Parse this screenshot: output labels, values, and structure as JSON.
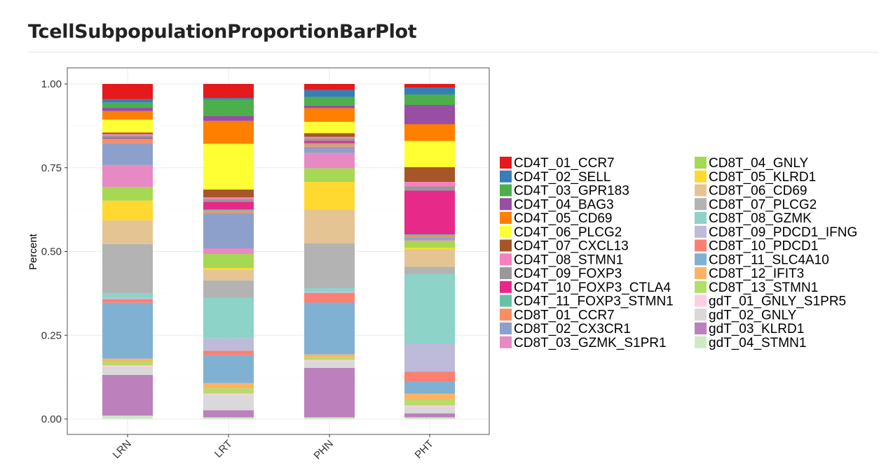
{
  "page": {
    "title": "TcellSubpopulationProportionBarPlot"
  },
  "chart_data": {
    "type": "bar",
    "stacked": true,
    "title": "",
    "xlabel": "",
    "ylabel": "Percent",
    "ylim": [
      0,
      1
    ],
    "yticks": [
      "0.00",
      "0.25",
      "0.50",
      "0.75",
      "1.00"
    ],
    "ytick_values": [
      0,
      0.25,
      0.5,
      0.75,
      1.0
    ],
    "categories": [
      "LRN",
      "LRT",
      "PHN",
      "PHT"
    ],
    "grid": true,
    "legend_position": "right",
    "legend_columns": 2,
    "series": [
      {
        "name": "CD4T_01_CCR7",
        "color": "#E41A1C",
        "values": [
          0.045,
          0.04,
          0.018,
          0.01
        ]
      },
      {
        "name": "CD4T_02_SELL",
        "color": "#377EB8",
        "values": [
          0.01,
          0.005,
          0.02,
          0.02
        ]
      },
      {
        "name": "CD4T_03_GPR183",
        "color": "#4DAF4A",
        "values": [
          0.015,
          0.045,
          0.025,
          0.03
        ]
      },
      {
        "name": "CD4T_04_BAG3",
        "color": "#984EA3",
        "values": [
          0.01,
          0.015,
          0.008,
          0.055
        ]
      },
      {
        "name": "CD4T_05_CD69",
        "color": "#FF7F00",
        "values": [
          0.025,
          0.065,
          0.04,
          0.048
        ]
      },
      {
        "name": "CD4T_06_PLCG2",
        "color": "#FFFF33",
        "values": [
          0.038,
          0.13,
          0.033,
          0.075
        ]
      },
      {
        "name": "CD4T_07_CXCL13",
        "color": "#A65628",
        "values": [
          0.005,
          0.022,
          0.011,
          0.042
        ]
      },
      {
        "name": "CD4T_08_STMN1",
        "color": "#F781BF",
        "values": [
          0.004,
          0.005,
          0.004,
          0.013
        ]
      },
      {
        "name": "CD4T_09_FOXP3",
        "color": "#999999",
        "values": [
          0.006,
          0.008,
          0.008,
          0.012
        ]
      },
      {
        "name": "CD4T_10_FOXP3_CTLA4",
        "color": "#E7298A",
        "values": [
          0.003,
          0.022,
          0.006,
          0.125
        ]
      },
      {
        "name": "CD4T_11_FOXP3_STMN1",
        "color": "#66C2A5",
        "values": [
          0.003,
          0.004,
          0.004,
          0.005
        ]
      },
      {
        "name": "CD8T_01_CCR7",
        "color": "#FC8D62",
        "values": [
          0.01,
          0.006,
          0.007,
          0.005
        ]
      },
      {
        "name": "CD8T_02_CX3CR1",
        "color": "#8DA0CB",
        "values": [
          0.065,
          0.1,
          0.018,
          0.005
        ]
      },
      {
        "name": "CD8T_03_GZMK_S1PR1",
        "color": "#E78AC3",
        "values": [
          0.065,
          0.016,
          0.045,
          0.003
        ]
      },
      {
        "name": "CD8T_04_GNLY",
        "color": "#A6D854",
        "values": [
          0.04,
          0.04,
          0.04,
          0.02
        ]
      },
      {
        "name": "CD8T_05_KLRD1",
        "color": "#FFD92F",
        "values": [
          0.058,
          0.005,
          0.08,
          0.005
        ]
      },
      {
        "name": "CD8T_06_CD69",
        "color": "#E5C494",
        "values": [
          0.07,
          0.03,
          0.1,
          0.05
        ]
      },
      {
        "name": "CD8T_07_PLCG2",
        "color": "#B3B3B3",
        "values": [
          0.145,
          0.05,
          0.13,
          0.02
        ]
      },
      {
        "name": "CD8T_08_GZMK",
        "color": "#8DD3C7",
        "values": [
          0.013,
          0.115,
          0.01,
          0.2
        ]
      },
      {
        "name": "CD8T_09_PDCD1_IFNG",
        "color": "#BEBADA",
        "values": [
          0.005,
          0.035,
          0.005,
          0.08
        ]
      },
      {
        "name": "CD8T_10_PDCD1",
        "color": "#FB8072",
        "values": [
          0.01,
          0.012,
          0.028,
          0.027
        ]
      },
      {
        "name": "CD8T_11_SLC4A10",
        "color": "#80B1D3",
        "values": [
          0.165,
          0.08,
          0.152,
          0.035
        ]
      },
      {
        "name": "CD8T_12_IFIT3",
        "color": "#FDB462",
        "values": [
          0.01,
          0.015,
          0.008,
          0.018
        ]
      },
      {
        "name": "CD8T_13_STMN1",
        "color": "#B3DE69",
        "values": [
          0.01,
          0.015,
          0.008,
          0.016
        ]
      },
      {
        "name": "gdT_01_GNLY_S1PR5",
        "color": "#FCCDE5",
        "values": [
          0.005,
          0.005,
          0.005,
          0.005
        ]
      },
      {
        "name": "gdT_02_GNLY",
        "color": "#D9D9D9",
        "values": [
          0.023,
          0.042,
          0.018,
          0.018
        ]
      },
      {
        "name": "gdT_03_KLRD1",
        "color": "#BC80BD",
        "values": [
          0.12,
          0.02,
          0.145,
          0.011
        ]
      },
      {
        "name": "gdT_04_STMN1",
        "color": "#CCEBC5",
        "values": [
          0.01,
          0.005,
          0.005,
          0.005
        ]
      }
    ]
  }
}
